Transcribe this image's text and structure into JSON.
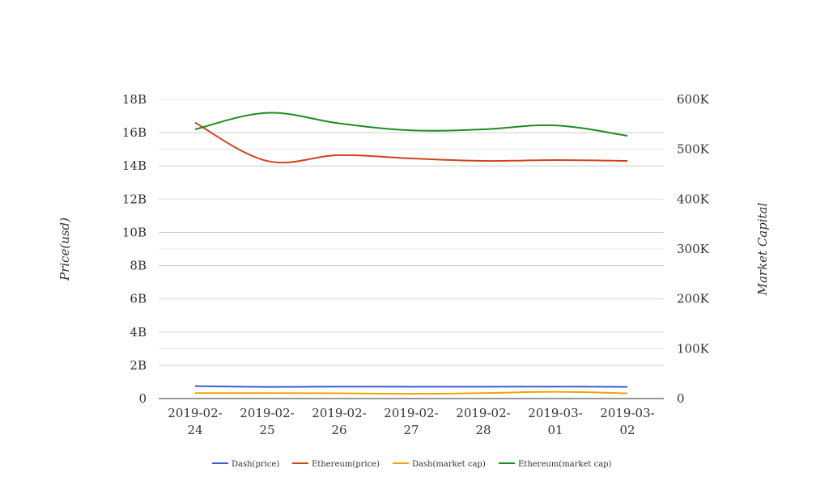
{
  "chart_data": {
    "type": "line",
    "title": "",
    "categories": [
      "2019-02-24",
      "2019-02-25",
      "2019-02-26",
      "2019-02-27",
      "2019-02-28",
      "2019-03-01",
      "2019-03-02"
    ],
    "x_tick_labels": [
      [
        "2019-02-",
        "24"
      ],
      [
        "2019-02-",
        "25"
      ],
      [
        "2019-02-",
        "26"
      ],
      [
        "2019-02-",
        "27"
      ],
      [
        "2019-02-",
        "28"
      ],
      [
        "2019-03-",
        "01"
      ],
      [
        "2019-03-",
        "02"
      ]
    ],
    "ylabel": "Price(usd)",
    "y2label": "Market Capital",
    "ylim": [
      0,
      18000000000
    ],
    "y2lim": [
      0,
      600000
    ],
    "y_ticks": [
      0,
      2000000000,
      4000000000,
      6000000000,
      8000000000,
      10000000000,
      12000000000,
      14000000000,
      16000000000,
      18000000000
    ],
    "y_tick_labels": [
      "0",
      "2B",
      "4B",
      "6B",
      "8B",
      "10B",
      "12B",
      "14B",
      "16B",
      "18B"
    ],
    "y2_ticks": [
      0,
      100000,
      200000,
      300000,
      400000,
      500000,
      600000
    ],
    "y2_tick_labels": [
      "0",
      "100K",
      "200K",
      "300K",
      "400K",
      "500K",
      "600K"
    ],
    "grid": true,
    "legend_position": "bottom",
    "series": [
      {
        "name": "Dash(price)",
        "axis": "left",
        "color": "#3a5fcd",
        "values": [
          750000000,
          700000000,
          720000000,
          710000000,
          710000000,
          720000000,
          700000000
        ]
      },
      {
        "name": "Ethereum(price)",
        "axis": "left",
        "color": "#d2421b",
        "values": [
          16600000000,
          14300000000,
          14650000000,
          14450000000,
          14300000000,
          14350000000,
          14300000000
        ]
      },
      {
        "name": "Dash(market cap)",
        "axis": "right",
        "color": "#f0a30a",
        "values": [
          11000,
          11000,
          10500,
          9500,
          11000,
          13500,
          10500
        ]
      },
      {
        "name": "Ethereum(market cap)",
        "axis": "right",
        "color": "#1e8c1e",
        "values": [
          540000,
          573000,
          552000,
          538000,
          540000,
          548000,
          527000
        ]
      }
    ]
  }
}
